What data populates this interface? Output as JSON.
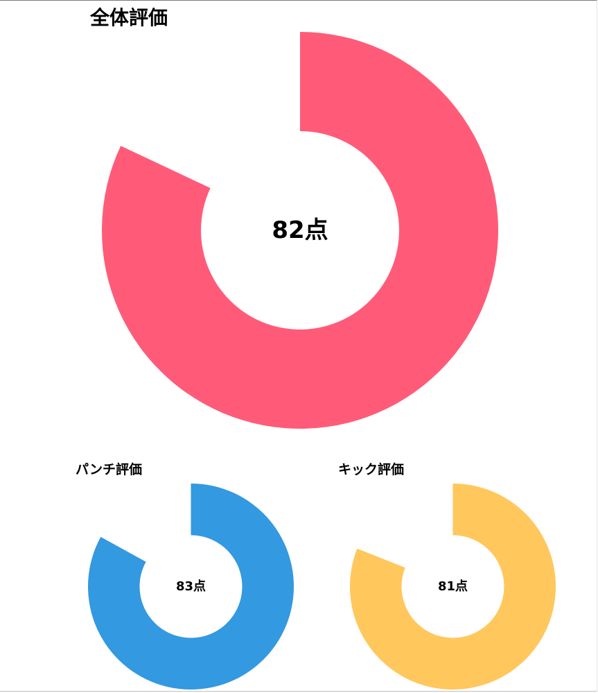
{
  "chart_data": [
    {
      "type": "donut",
      "title": "全体評価",
      "value": 82,
      "max": 100,
      "center_label": "82点",
      "color": "#ff5b78",
      "start": "top",
      "direction": "clockwise"
    },
    {
      "type": "donut",
      "title": "パンチ評価",
      "value": 83,
      "max": 100,
      "center_label": "83点",
      "color": "#3399e0",
      "start": "top",
      "direction": "clockwise"
    },
    {
      "type": "donut",
      "title": "キック評価",
      "value": 81,
      "max": 100,
      "center_label": "81点",
      "color": "#ffc75c",
      "start": "top",
      "direction": "clockwise"
    }
  ]
}
